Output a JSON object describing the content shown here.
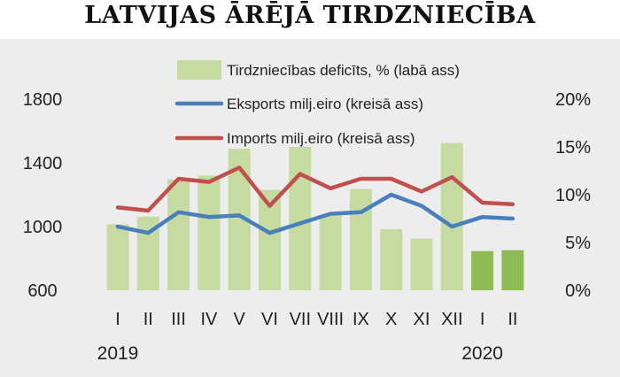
{
  "chart_data": {
    "type": "bar",
    "title": "LATVIJAS ĀRĒJĀ TIRDZNIECĪBA",
    "categories": [
      "I",
      "II",
      "III",
      "IV",
      "V",
      "VI",
      "VII",
      "VIII",
      "IX",
      "X",
      "XI",
      "XII",
      "I",
      "II"
    ],
    "year_labels": [
      "2019",
      "2020"
    ],
    "left_axis": {
      "ticks": [
        "600",
        "1000",
        "1400",
        "1800"
      ],
      "ylim": [
        600,
        1800
      ]
    },
    "right_axis": {
      "ticks": [
        "0%",
        "5%",
        "10%",
        "15%",
        "20%"
      ],
      "ylim": [
        0,
        20
      ]
    },
    "legend_position": "top-center",
    "series": [
      {
        "name": "Tirdzniecības deficīts, % (labā ass)",
        "type": "bar",
        "axis": "right",
        "color": "#c6dba2",
        "highlight_color": "#8fba55",
        "highlight_from_index": 12,
        "values": [
          6.9,
          7.7,
          11.6,
          12.0,
          14.8,
          10.5,
          15.0,
          7.8,
          10.6,
          6.4,
          5.4,
          15.4,
          4.1,
          4.2
        ]
      },
      {
        "name": "Eksports milj.eiro (kreisā ass)",
        "type": "line",
        "axis": "left",
        "color": "#4a7fbd",
        "values": [
          1000,
          960,
          1090,
          1060,
          1070,
          960,
          1020,
          1080,
          1090,
          1200,
          1130,
          1000,
          1060,
          1050
        ]
      },
      {
        "name": "Imports milj.eiro (kreisā ass)",
        "type": "line",
        "axis": "left",
        "color": "#c0504d",
        "values": [
          1120,
          1100,
          1300,
          1280,
          1370,
          1130,
          1330,
          1240,
          1300,
          1300,
          1220,
          1310,
          1150,
          1140
        ]
      }
    ]
  }
}
